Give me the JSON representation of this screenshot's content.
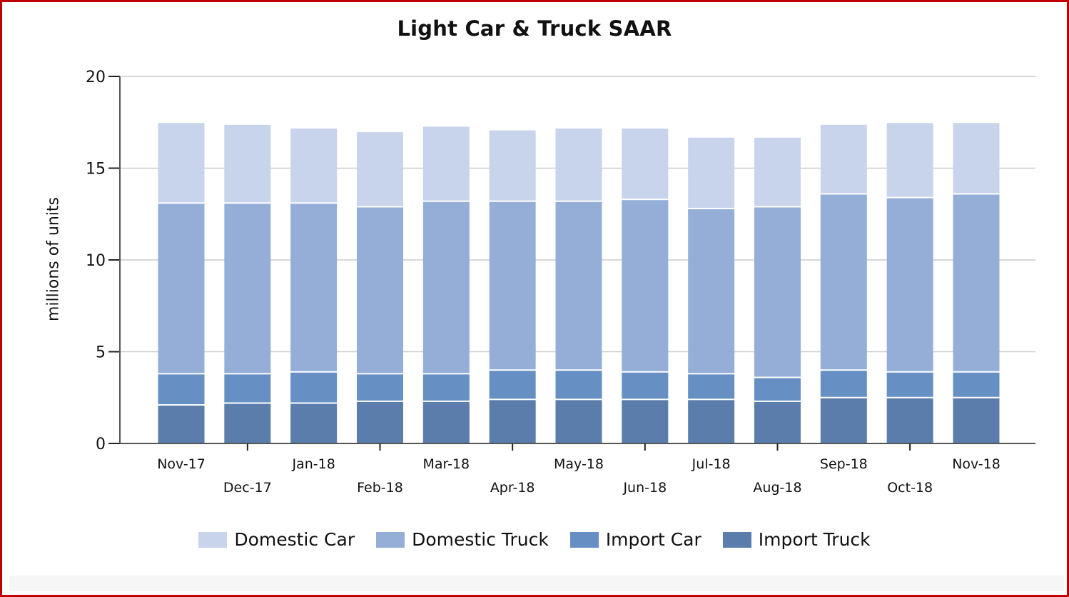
{
  "chart_data": {
    "type": "bar",
    "stacked": true,
    "title": "Light Car & Truck SAAR",
    "ylabel": "millions of units",
    "xlabel": "",
    "ylim": [
      0,
      20
    ],
    "yticks": [
      0,
      5,
      10,
      15,
      20
    ],
    "grid": true,
    "legend_position": "bottom",
    "categories": [
      "Nov-17",
      "Dec-17",
      "Jan-18",
      "Feb-18",
      "Mar-18",
      "Apr-18",
      "May-18",
      "Jun-18",
      "Jul-18",
      "Aug-18",
      "Sep-18",
      "Oct-18",
      "Nov-18"
    ],
    "series": [
      {
        "name": "Import Truck",
        "color": "#5a7dab",
        "values": [
          2.1,
          2.2,
          2.2,
          2.3,
          2.3,
          2.4,
          2.4,
          2.4,
          2.4,
          2.3,
          2.5,
          2.5,
          2.5
        ]
      },
      {
        "name": "Import Car",
        "color": "#6690c4",
        "values": [
          1.7,
          1.6,
          1.7,
          1.5,
          1.5,
          1.6,
          1.6,
          1.5,
          1.4,
          1.3,
          1.5,
          1.4,
          1.4
        ]
      },
      {
        "name": "Domestic Truck",
        "color": "#95aed8",
        "values": [
          9.3,
          9.3,
          9.2,
          9.1,
          9.4,
          9.2,
          9.2,
          9.4,
          9.0,
          9.3,
          9.6,
          9.5,
          9.7
        ]
      },
      {
        "name": "Domestic Car",
        "color": "#c8d4ec",
        "values": [
          4.4,
          4.3,
          4.1,
          4.1,
          4.1,
          3.9,
          4.0,
          3.9,
          3.9,
          3.8,
          3.8,
          4.1,
          3.9
        ]
      }
    ]
  },
  "legend": [
    {
      "label": "Domestic Car",
      "color": "#c8d4ec"
    },
    {
      "label": "Domestic Truck",
      "color": "#95aed8"
    },
    {
      "label": "Import Car",
      "color": "#6690c4"
    },
    {
      "label": "Import Truck",
      "color": "#5a7dab"
    }
  ]
}
